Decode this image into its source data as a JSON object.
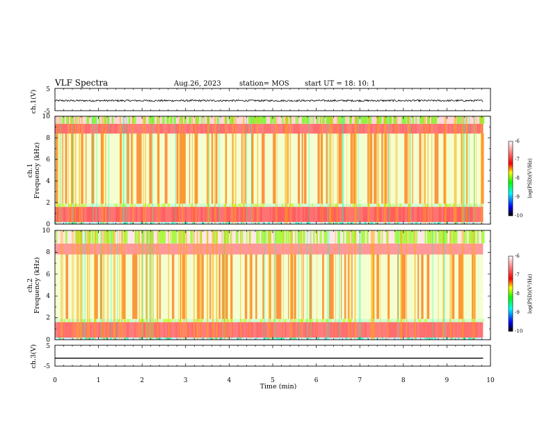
{
  "header": {
    "title": "VLF Spectra",
    "date": "Aug.26, 2023",
    "station": "station= MOS",
    "start": "start UT =  18: 10: 1"
  },
  "chart_data": [
    {
      "panel": "ch1-waveform",
      "type": "line",
      "ylabel": "ch.1(V)",
      "ylim": [
        -5,
        5
      ],
      "yticks": [
        "5",
        "-5"
      ],
      "mean_value": -0.5,
      "amplitude": 0.4,
      "color": "#000000"
    },
    {
      "panel": "ch1-spectrogram",
      "type": "heatmap",
      "ylabel": "ch.1\nFrequency (kHz)",
      "ylim": [
        0,
        10
      ],
      "yticks": [
        "0",
        "2",
        "4",
        "6",
        "8",
        "10"
      ],
      "bands_khz": [
        {
          "from": 0.0,
          "to": 0.2,
          "level": 0.25
        },
        {
          "from": 0.2,
          "to": 1.6,
          "level": 0.7
        },
        {
          "from": 1.6,
          "to": 1.9,
          "level": 0.45
        },
        {
          "from": 1.9,
          "to": 8.4,
          "level": 0.55
        },
        {
          "from": 8.4,
          "to": 9.3,
          "level": 0.72
        },
        {
          "from": 9.3,
          "to": 10.0,
          "level": 0.95
        }
      ]
    },
    {
      "panel": "ch2-spectrogram",
      "type": "heatmap",
      "ylabel": "ch.2\nFrequency (kHz)",
      "ylim": [
        0,
        10
      ],
      "yticks": [
        "0",
        "2",
        "4",
        "6",
        "8",
        "10"
      ],
      "bands_khz": [
        {
          "from": 0.0,
          "to": 0.2,
          "level": 0.25
        },
        {
          "from": 0.2,
          "to": 1.6,
          "level": 0.72
        },
        {
          "from": 1.6,
          "to": 1.9,
          "level": 0.45
        },
        {
          "from": 1.9,
          "to": 7.8,
          "level": 0.55
        },
        {
          "from": 7.8,
          "to": 8.8,
          "level": 0.78
        },
        {
          "from": 8.8,
          "to": 10.0,
          "level": 0.97
        }
      ]
    },
    {
      "panel": "ch3-waveform",
      "type": "line",
      "ylabel": "ch.3(V)",
      "ylim": [
        -5,
        5
      ],
      "yticks": [
        "5",
        "-5"
      ],
      "mean_value": -1.2,
      "amplitude": 0.0,
      "color": "#000000"
    }
  ],
  "time_axis": {
    "xlabel": "Time  (min)",
    "xlim": [
      0,
      10
    ],
    "xticks": [
      "0",
      "1",
      "2",
      "3",
      "4",
      "5",
      "6",
      "7",
      "8",
      "9",
      "10"
    ],
    "data_end_min": 9.83
  },
  "colorbars": [
    {
      "label": "log(PSD)(V²/Hz)",
      "ticks": [
        "-6",
        "-7",
        "-8",
        "-9",
        "-10"
      ],
      "range": [
        -10,
        -6
      ]
    },
    {
      "label": "log(PSD)(V²/Hz)",
      "ticks": [
        "-6",
        "-7",
        "-8",
        "-9",
        "-10"
      ],
      "range": [
        -10,
        -6
      ]
    }
  ],
  "colors": {
    "low": "#000000",
    "blue": "#0000ff",
    "cyan": "#00ffff",
    "green": "#00ff00",
    "yellow": "#ffff00",
    "red": "#ff0000",
    "high": "#ffffff"
  }
}
